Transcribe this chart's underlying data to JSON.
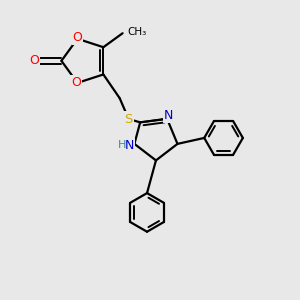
{
  "background_color": "#e8e8e8",
  "bond_color": "#000000",
  "oxygen_color": "#ff0000",
  "nitrogen_color": "#0000cc",
  "sulfur_color": "#ccaa00",
  "hydrogen_color": "#2f9090",
  "figsize": [
    3.0,
    3.0
  ],
  "dpi": 100,
  "xlim": [
    0,
    10
  ],
  "ylim": [
    0,
    10
  ]
}
